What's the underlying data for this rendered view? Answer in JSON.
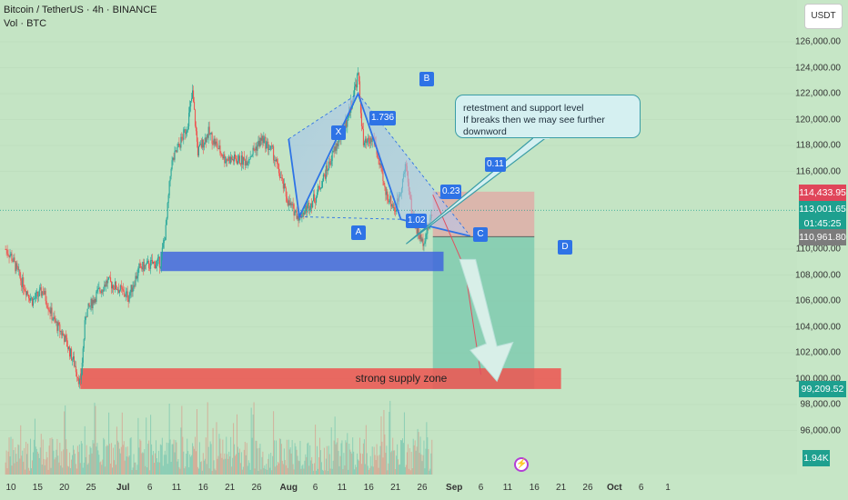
{
  "header": {
    "title": "Bitcoin / TetherUS · 4h · BINANCE",
    "indicator": "Vol · BTC"
  },
  "axis_currency": "USDT",
  "annotation": {
    "line1": "retestment and support level",
    "line2": "If breaks then we may see further downword"
  },
  "zone_label": "strong supply zone",
  "price_labels": {
    "p1": "114,433.95",
    "p2": "113,001.65",
    "p2_timer": "01:45:25",
    "p3": "110,961.80",
    "p4": "99,209.52",
    "vol": "1.94K"
  },
  "pattern_points": [
    "X",
    "A",
    "B",
    "C",
    "D"
  ],
  "ratios": [
    "1.736",
    "1.02",
    "0.23",
    "0.11"
  ],
  "colors": {
    "background": "#c4e4c4",
    "up_candle": "#26a69a",
    "down_candle": "#ef5350",
    "pattern": "#2e73e6",
    "supply_zone": "#ef5350",
    "support_zone": "#3b5fe0",
    "stop_zone": "#e6a3a3",
    "target_zone": "#80cbb0"
  },
  "chart_data": {
    "type": "candlestick",
    "title": "Bitcoin / TetherUS · 4h · BINANCE",
    "x_ticks": [
      "10",
      "15",
      "20",
      "25",
      "Jul",
      "6",
      "11",
      "16",
      "21",
      "26",
      "Aug",
      "6",
      "11",
      "16",
      "21",
      "26",
      "Sep",
      "6",
      "11",
      "16",
      "21",
      "26",
      "Oct",
      "6",
      "1"
    ],
    "y_ticks": [
      "126,000.00",
      "124,000.00",
      "122,000.00",
      "120,000.00",
      "118,000.00",
      "116,000.00",
      "110,000.00",
      "108,000.00",
      "106,000.00",
      "104,000.00",
      "102,000.00",
      "100,000.00",
      "98,000.00",
      "96,000.00"
    ],
    "ylim": [
      94000,
      127500
    ],
    "price_path": [
      {
        "t": "Jun 09",
        "p": 110000
      },
      {
        "t": "Jun 10",
        "p": 109500
      },
      {
        "t": "Jun 12",
        "p": 107500
      },
      {
        "t": "Jun 14",
        "p": 106000
      },
      {
        "t": "Jun 16",
        "p": 106800
      },
      {
        "t": "Jun 18",
        "p": 104500
      },
      {
        "t": "Jun 20",
        "p": 103200
      },
      {
        "t": "Jun 22",
        "p": 101000
      },
      {
        "t": "Jun 23",
        "p": 99500
      },
      {
        "t": "Jun 24",
        "p": 105000
      },
      {
        "t": "Jun 26",
        "p": 106500
      },
      {
        "t": "Jun 28",
        "p": 107500
      },
      {
        "t": "Jun 30",
        "p": 107000
      },
      {
        "t": "Jul 02",
        "p": 106300
      },
      {
        "t": "Jul 04",
        "p": 108500
      },
      {
        "t": "Jul 06",
        "p": 108800
      },
      {
        "t": "Jul 08",
        "p": 109000
      },
      {
        "t": "Jul 09",
        "p": 111500
      },
      {
        "t": "Jul 10",
        "p": 116500
      },
      {
        "t": "Jul 11",
        "p": 117500
      },
      {
        "t": "Jul 13",
        "p": 119500
      },
      {
        "t": "Jul 14",
        "p": 122000
      },
      {
        "t": "Jul 15",
        "p": 117500
      },
      {
        "t": "Jul 17",
        "p": 119000
      },
      {
        "t": "Jul 20",
        "p": 117000
      },
      {
        "t": "Jul 24",
        "p": 116800
      },
      {
        "t": "Jul 27",
        "p": 118500
      },
      {
        "t": "Jul 29",
        "p": 117500
      },
      {
        "t": "Aug 01",
        "p": 113500
      },
      {
        "t": "Aug 03",
        "p": 112500
      },
      {
        "t": "Aug 06",
        "p": 114000
      },
      {
        "t": "Aug 09",
        "p": 117000
      },
      {
        "t": "Aug 12",
        "p": 120000
      },
      {
        "t": "Aug 14",
        "p": 123500
      },
      {
        "t": "Aug 15",
        "p": 118000
      },
      {
        "t": "Aug 17",
        "p": 118500
      },
      {
        "t": "Aug 19",
        "p": 114500
      },
      {
        "t": "Aug 21",
        "p": 113000
      },
      {
        "t": "Aug 23",
        "p": 116500
      },
      {
        "t": "Aug 24",
        "p": 113000
      },
      {
        "t": "Aug 25",
        "p": 111500
      },
      {
        "t": "Aug 26",
        "p": 110500
      },
      {
        "t": "Aug 27",
        "p": 111500
      },
      {
        "t": "Aug 28",
        "p": 113000
      }
    ],
    "pattern": [
      {
        "label": "X",
        "t": "Aug 01",
        "p": 118500
      },
      {
        "label": "A",
        "t": "Aug 03",
        "p": 112500
      },
      {
        "label": "B",
        "t": "Aug 14",
        "p": 122000
      },
      {
        "label": "C",
        "t": "Aug 22",
        "p": 112300
      },
      {
        "label": "D",
        "t": "Sep 04",
        "p": 111000
      }
    ],
    "zones": {
      "support": [
        109800,
        108300
      ],
      "supply": [
        100800,
        99200
      ],
      "stop": [
        114433.95,
        110961.8
      ],
      "target": [
        110961.8,
        99209.52
      ]
    }
  }
}
